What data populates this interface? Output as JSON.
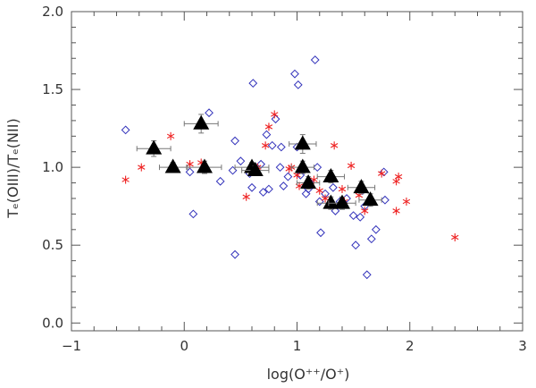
{
  "chart_data": {
    "type": "scatter",
    "xlabel": "log(O⁺⁺/O⁺)",
    "ylabel": "Tₑ(OIII)/Tₑ(NII)",
    "xlim": [
      -1,
      3
    ],
    "ylim": [
      -0.05,
      2.0
    ],
    "x_ticks": [
      -1,
      0,
      1,
      2,
      3
    ],
    "x_tick_labels": [
      "−1",
      "0",
      "1",
      "2",
      "3"
    ],
    "y_ticks": [
      0.0,
      0.5,
      1.0,
      1.5,
      2.0
    ],
    "y_tick_labels": [
      "0.0",
      "0.5",
      "1.0",
      "1.5",
      "2.0"
    ],
    "grid": false,
    "series": [
      {
        "marker": "diamond-open",
        "color": "#3333bb",
        "points": [
          [
            -0.52,
            1.24
          ],
          [
            0.05,
            0.97
          ],
          [
            0.08,
            0.7
          ],
          [
            0.22,
            1.35
          ],
          [
            0.32,
            0.91
          ],
          [
            0.43,
            0.98
          ],
          [
            0.45,
            1.17
          ],
          [
            0.45,
            0.44
          ],
          [
            0.5,
            1.04
          ],
          [
            0.58,
            0.96
          ],
          [
            0.6,
            0.87
          ],
          [
            0.61,
            1.54
          ],
          [
            0.68,
            1.02
          ],
          [
            0.7,
            0.84
          ],
          [
            0.73,
            1.21
          ],
          [
            0.75,
            0.86
          ],
          [
            0.78,
            1.14
          ],
          [
            0.81,
            1.31
          ],
          [
            0.85,
            1.0
          ],
          [
            0.86,
            1.13
          ],
          [
            0.88,
            0.88
          ],
          [
            0.92,
            0.94
          ],
          [
            0.98,
            1.6
          ],
          [
            1.0,
            1.13
          ],
          [
            1.01,
            1.53
          ],
          [
            1.03,
            0.95
          ],
          [
            1.05,
            0.98
          ],
          [
            1.08,
            0.83
          ],
          [
            1.1,
            0.86
          ],
          [
            1.12,
            0.9
          ],
          [
            1.16,
            1.69
          ],
          [
            1.18,
            1.0
          ],
          [
            1.2,
            0.78
          ],
          [
            1.21,
            0.58
          ],
          [
            1.25,
            0.83
          ],
          [
            1.32,
            0.87
          ],
          [
            1.34,
            0.72
          ],
          [
            1.38,
            0.78
          ],
          [
            1.44,
            0.8
          ],
          [
            1.5,
            0.69
          ],
          [
            1.52,
            0.5
          ],
          [
            1.56,
            0.68
          ],
          [
            1.58,
            0.85
          ],
          [
            1.6,
            0.75
          ],
          [
            1.62,
            0.31
          ],
          [
            1.66,
            0.54
          ],
          [
            1.7,
            0.6
          ],
          [
            1.77,
            0.97
          ],
          [
            1.78,
            0.79
          ]
        ]
      },
      {
        "marker": "asterisk",
        "color": "#ee2222",
        "points": [
          [
            -0.52,
            0.92
          ],
          [
            -0.38,
            1.0
          ],
          [
            -0.12,
            1.2
          ],
          [
            0.05,
            1.02
          ],
          [
            0.15,
            1.03
          ],
          [
            0.55,
            0.81
          ],
          [
            0.65,
            1.0
          ],
          [
            0.72,
            1.14
          ],
          [
            0.75,
            1.26
          ],
          [
            0.8,
            1.34
          ],
          [
            0.93,
            0.99
          ],
          [
            0.95,
            1.0
          ],
          [
            1.0,
            0.95
          ],
          [
            1.02,
            0.88
          ],
          [
            1.15,
            0.92
          ],
          [
            1.2,
            0.85
          ],
          [
            1.25,
            0.8
          ],
          [
            1.33,
            1.14
          ],
          [
            1.4,
            0.86
          ],
          [
            1.42,
            0.78
          ],
          [
            1.48,
            1.01
          ],
          [
            1.55,
            0.82
          ],
          [
            1.6,
            0.72
          ],
          [
            1.75,
            0.96
          ],
          [
            1.88,
            0.91
          ],
          [
            1.88,
            0.72
          ],
          [
            1.9,
            0.94
          ],
          [
            1.97,
            0.78
          ],
          [
            2.4,
            0.55
          ]
        ]
      },
      {
        "marker": "triangle-filled",
        "color": "#000000",
        "points": [
          {
            "x": -0.27,
            "y": 1.12,
            "xerr": 0.15,
            "yerr": 0.05
          },
          {
            "x": -0.1,
            "y": 1.0,
            "xerr": 0.12,
            "yerr": 0.03
          },
          {
            "x": 0.15,
            "y": 1.28,
            "xerr": 0.15,
            "yerr": 0.06
          },
          {
            "x": 0.18,
            "y": 1.0,
            "xerr": 0.15,
            "yerr": 0.04
          },
          {
            "x": 0.6,
            "y": 1.0,
            "xerr": 0.15,
            "yerr": 0.03
          },
          {
            "x": 0.63,
            "y": 0.98,
            "xerr": 0.12,
            "yerr": 0.03
          },
          {
            "x": 1.05,
            "y": 1.15,
            "xerr": 0.12,
            "yerr": 0.06
          },
          {
            "x": 1.05,
            "y": 1.0,
            "xerr": 0.1,
            "yerr": 0.04
          },
          {
            "x": 1.1,
            "y": 0.9,
            "xerr": 0.1,
            "yerr": 0.04
          },
          {
            "x": 1.3,
            "y": 0.94,
            "xerr": 0.12,
            "yerr": 0.04
          },
          {
            "x": 1.3,
            "y": 0.77,
            "xerr": 0.12,
            "yerr": 0.04
          },
          {
            "x": 1.4,
            "y": 0.77,
            "xerr": 0.12,
            "yerr": 0.04
          },
          {
            "x": 1.57,
            "y": 0.87,
            "xerr": 0.12,
            "yerr": 0.04
          },
          {
            "x": 1.65,
            "y": 0.79,
            "xerr": 0.1,
            "yerr": 0.04
          }
        ]
      }
    ]
  }
}
